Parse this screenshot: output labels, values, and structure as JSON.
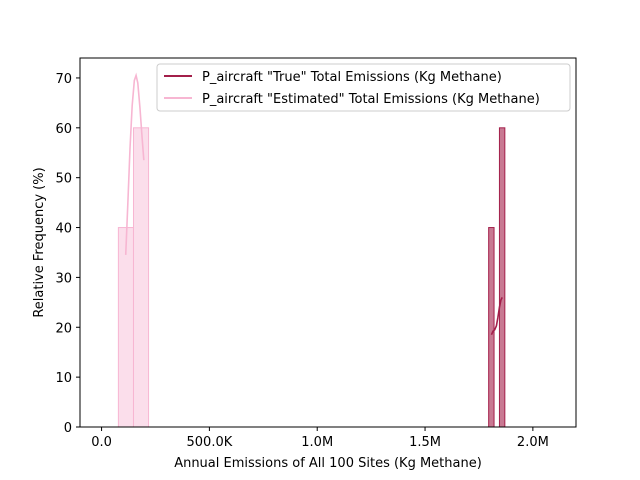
{
  "chart_data": {
    "type": "histogram",
    "title": "",
    "xlabel": "Annual Emissions of All 100 Sites (Kg Methane)",
    "ylabel": "Relative Frequency (%)",
    "xlim": [
      -100000,
      2200000
    ],
    "ylim": [
      0,
      74
    ],
    "xticks": [
      {
        "value": 0,
        "label": "0.0"
      },
      {
        "value": 500000,
        "label": "500.0K"
      },
      {
        "value": 1000000,
        "label": "1.0M"
      },
      {
        "value": 1500000,
        "label": "1.5M"
      },
      {
        "value": 2000000,
        "label": "2.0M"
      }
    ],
    "yticks": [
      0,
      10,
      20,
      30,
      40,
      50,
      60,
      70
    ],
    "legend_position": "top-right",
    "series": [
      {
        "name": "P_aircraft \"True\" Total Emissions (Kg Methane)",
        "color": "#a31f4a",
        "bars": [
          {
            "x0": 1795000,
            "x1": 1820000,
            "value": 40
          },
          {
            "x0": 1845000,
            "x1": 1870000,
            "value": 60
          }
        ],
        "kde": [
          [
            1808000,
            18.5
          ],
          [
            1815000,
            19.2
          ],
          [
            1823000,
            19.5
          ],
          [
            1831000,
            20.3
          ],
          [
            1838000,
            22.0
          ],
          [
            1845000,
            24.0
          ],
          [
            1852000,
            25.5
          ],
          [
            1858000,
            26.0
          ]
        ]
      },
      {
        "name": "P_aircraft \"Estimated\" Total Emissions (Kg Methane)",
        "color": "#f7b6d2",
        "bars": [
          {
            "x0": 78000,
            "x1": 148000,
            "value": 40
          },
          {
            "x0": 148000,
            "x1": 218000,
            "value": 60
          }
        ],
        "kde": [
          [
            112000,
            34.5
          ],
          [
            122000,
            45.0
          ],
          [
            132000,
            56.0
          ],
          [
            142000,
            64.5
          ],
          [
            152000,
            69.5
          ],
          [
            160000,
            70.5
          ],
          [
            168000,
            69.0
          ],
          [
            178000,
            64.0
          ],
          [
            188000,
            58.0
          ],
          [
            196000,
            53.5
          ]
        ]
      }
    ]
  }
}
